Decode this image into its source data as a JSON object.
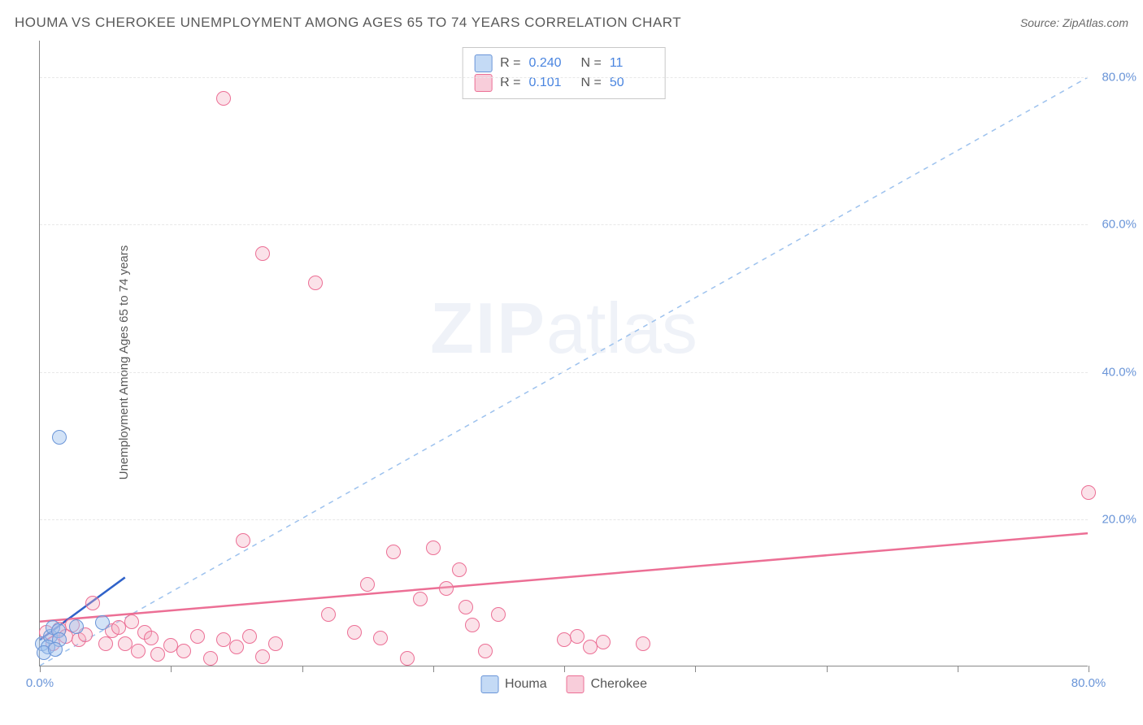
{
  "title": "HOUMA VS CHEROKEE UNEMPLOYMENT AMONG AGES 65 TO 74 YEARS CORRELATION CHART",
  "source": "Source: ZipAtlas.com",
  "ylabel": "Unemployment Among Ages 65 to 74 years",
  "watermark_bold": "ZIP",
  "watermark_rest": "atlas",
  "chart": {
    "type": "scatter",
    "xlim": [
      0,
      80
    ],
    "ylim": [
      0,
      85
    ],
    "ytick_values": [
      20,
      40,
      60,
      80
    ],
    "ytick_labels": [
      "20.0%",
      "40.0%",
      "60.0%",
      "80.0%"
    ],
    "xtick_values": [
      0,
      10,
      20,
      30,
      40,
      50,
      60,
      70,
      80
    ],
    "xtick_labels_shown": {
      "0": "0.0%",
      "80": "80.0%"
    },
    "background_color": "#ffffff",
    "grid_color": "#e8e8e8",
    "axis_color": "#888888",
    "tick_label_color": "#6a95d8",
    "series": {
      "houma": {
        "label": "Houma",
        "color_fill": "rgba(157,194,238,0.45)",
        "color_stroke": "#6a95d8",
        "marker_size": 18,
        "r_value": "0.240",
        "n_value": "11",
        "points": [
          [
            0.2,
            3.0
          ],
          [
            0.8,
            4.0
          ],
          [
            0.6,
            2.5
          ],
          [
            1.0,
            5.2
          ],
          [
            1.4,
            4.8
          ],
          [
            1.5,
            3.5
          ],
          [
            0.3,
            1.8
          ],
          [
            1.2,
            2.2
          ],
          [
            2.8,
            5.3
          ],
          [
            4.8,
            5.8
          ],
          [
            1.5,
            31.0
          ]
        ],
        "trend": {
          "x1": 0,
          "y1": 3.5,
          "x2": 6.5,
          "y2": 12.0,
          "color": "#2f62c9",
          "width": 2.5,
          "dash": "none"
        },
        "identity": {
          "x1": 0,
          "y1": 0,
          "x2": 80,
          "y2": 80,
          "color": "#9dc2ee",
          "width": 1.5,
          "dash": "6,6"
        }
      },
      "cherokee": {
        "label": "Cherokee",
        "color_fill": "rgba(244,172,193,0.35)",
        "color_stroke": "#ec6f95",
        "marker_size": 18,
        "r_value": "0.101",
        "n_value": "50",
        "points": [
          [
            0.5,
            4.5
          ],
          [
            1.0,
            3.0
          ],
          [
            1.5,
            5.0
          ],
          [
            2.0,
            4.0
          ],
          [
            2.5,
            5.5
          ],
          [
            3.0,
            3.5
          ],
          [
            3.5,
            4.2
          ],
          [
            4.0,
            8.5
          ],
          [
            5.0,
            3.0
          ],
          [
            5.5,
            4.8
          ],
          [
            6.0,
            5.2
          ],
          [
            6.5,
            3.0
          ],
          [
            7.0,
            6.0
          ],
          [
            7.5,
            2.0
          ],
          [
            8.0,
            4.5
          ],
          [
            8.5,
            3.8
          ],
          [
            9.0,
            1.5
          ],
          [
            10.0,
            2.8
          ],
          [
            11.0,
            2.0
          ],
          [
            12.0,
            4.0
          ],
          [
            13.0,
            1.0
          ],
          [
            14.0,
            3.5
          ],
          [
            15.0,
            2.5
          ],
          [
            15.5,
            17.0
          ],
          [
            16.0,
            4.0
          ],
          [
            17.0,
            1.2
          ],
          [
            18.0,
            3.0
          ],
          [
            14.0,
            77.0
          ],
          [
            17.0,
            56.0
          ],
          [
            21.0,
            52.0
          ],
          [
            22.0,
            7.0
          ],
          [
            24.0,
            4.5
          ],
          [
            25.0,
            11.0
          ],
          [
            26.0,
            3.8
          ],
          [
            27.0,
            15.5
          ],
          [
            28.0,
            1.0
          ],
          [
            29.0,
            9.0
          ],
          [
            30.0,
            16.0
          ],
          [
            31.0,
            10.5
          ],
          [
            32.0,
            13.0
          ],
          [
            32.5,
            8.0
          ],
          [
            34.0,
            2.0
          ],
          [
            33.0,
            5.5
          ],
          [
            35.0,
            7.0
          ],
          [
            40.0,
            3.5
          ],
          [
            41.0,
            4.0
          ],
          [
            42.0,
            2.5
          ],
          [
            43.0,
            3.2
          ],
          [
            46.0,
            3.0
          ],
          [
            80.0,
            23.5
          ]
        ],
        "trend": {
          "x1": 0,
          "y1": 6.0,
          "x2": 80,
          "y2": 18.0,
          "color": "#ec6f95",
          "width": 2.5,
          "dash": "none"
        }
      }
    }
  },
  "stats_box": {
    "r_label": "R =",
    "n_label": "N ="
  },
  "legend": {
    "houma": "Houma",
    "cherokee": "Cherokee"
  }
}
